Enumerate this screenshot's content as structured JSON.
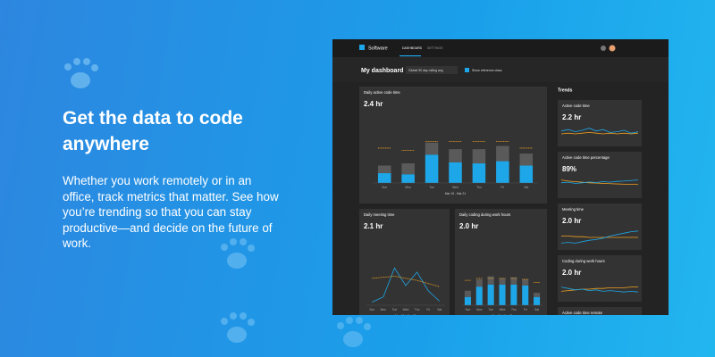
{
  "hero": {
    "title": "Get the data to code anywhere",
    "body": "Whether you work remotely or in an office, track metrics that matter. See how you’re trending so that you can stay productive—and decide on the future of work."
  },
  "app": {
    "brand": "Software",
    "tabs": [
      "DASHBOARD",
      "SETTINGS"
    ],
    "page_title": "My dashboard",
    "range": "Global 90 day rolling avg",
    "toggle": "Show reference class",
    "trends_title": "Trends"
  },
  "main_chart": {
    "title": "Daily active code time",
    "value": "2.4 hr",
    "categories": [
      "Sun",
      "Mon",
      "Tue",
      "Wed",
      "Thu",
      "Fri",
      "Sat"
    ],
    "date_range": "Mar 15 - Mar 21",
    "ylim": [
      0,
      5
    ],
    "active": [
      0.9,
      0.8,
      2.6,
      1.9,
      1.8,
      2.0,
      1.6
    ],
    "other": [
      0.7,
      1.0,
      1.1,
      1.2,
      1.3,
      1.4,
      1.1
    ],
    "reference": [
      3.2,
      3.0,
      3.8,
      3.8,
      3.8,
      3.8,
      3.2
    ]
  },
  "meeting_chart": {
    "title": "Daily meeting time",
    "value": "2.1 hr",
    "categories": [
      "Sun",
      "Mon",
      "Tue",
      "Wed",
      "Thu",
      "Fri",
      "Sat"
    ],
    "date_range": "Mar 15 - Mar 21",
    "ylim": [
      0,
      5
    ],
    "values": [
      0.3,
      0.8,
      3.6,
      1.9,
      3.2,
      1.4,
      0.4
    ],
    "reference": [
      2.6,
      2.7,
      2.8,
      2.6,
      2.4,
      2.1,
      1.8
    ]
  },
  "coding_chart": {
    "title": "Daily coding during work hours",
    "value": "2.0 hr",
    "categories": [
      "Sun",
      "Mon",
      "Tue",
      "Wed",
      "Thu",
      "Fri",
      "Sat"
    ],
    "date_range": "Mar 15 - Mar 21",
    "ylim": [
      0,
      5
    ],
    "active": [
      0.8,
      1.8,
      2.0,
      2.0,
      2.0,
      1.9,
      0.8
    ],
    "other": [
      0.6,
      0.7,
      0.8,
      0.6,
      0.7,
      0.6,
      0.4
    ],
    "reference": [
      2.4,
      2.6,
      2.6,
      2.6,
      2.6,
      2.5,
      2.2
    ]
  },
  "trends": [
    {
      "title": "Active code time",
      "value": "2.2 hr",
      "ylim": [
        0,
        4
      ],
      "blue": [
        2.4,
        2.6,
        2.3,
        2.5,
        2.8,
        2.4,
        2.6,
        2.2,
        2.3,
        2.5,
        2.1,
        2.3
      ],
      "orange": [
        2.0,
        2.1,
        2.0,
        2.1,
        2.2,
        2.1,
        2.0,
        2.1,
        2.0,
        2.1,
        2.0,
        2.1
      ]
    },
    {
      "title": "Active code time percentage",
      "value": "89%",
      "ylim": [
        0,
        100
      ],
      "blue": [
        60,
        62,
        58,
        60,
        63,
        61,
        64,
        62,
        65,
        66,
        68,
        70
      ],
      "orange": [
        70,
        66,
        64,
        62,
        60,
        59,
        58,
        57,
        56,
        55,
        55,
        54
      ]
    },
    {
      "title": "Meeting time",
      "value": "2.0 hr",
      "ylim": [
        0,
        4
      ],
      "blue": [
        1.2,
        1.3,
        1.2,
        1.4,
        1.6,
        1.7,
        1.9,
        2.2,
        2.4,
        2.6,
        2.8,
        2.9
      ],
      "orange": [
        2.2,
        2.2,
        2.1,
        2.1,
        2.0,
        2.0,
        2.0,
        2.0,
        2.0,
        2.0,
        2.0,
        2.0
      ]
    },
    {
      "title": "Coding during work hours",
      "value": "2.0 hr",
      "ylim": [
        0,
        4
      ],
      "blue": [
        2.3,
        2.1,
        1.9,
        2.0,
        1.8,
        1.9,
        1.7,
        1.8,
        1.7,
        1.6,
        1.7,
        1.6
      ],
      "orange": [
        1.7,
        1.8,
        1.9,
        2.0,
        2.0,
        2.1,
        2.1,
        2.2,
        2.2,
        2.2,
        2.3,
        2.3
      ]
    },
    {
      "title": "Active code time remote",
      "value": null,
      "ylim": null,
      "blue": [],
      "orange": []
    }
  ]
}
